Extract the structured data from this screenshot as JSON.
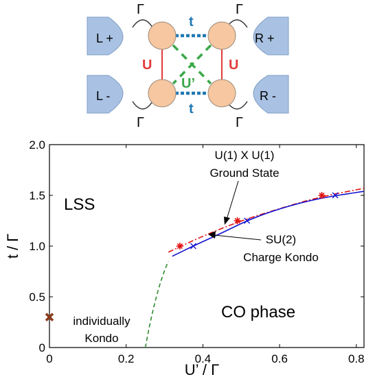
{
  "schematic": {
    "leads": {
      "left_top": "L +",
      "left_bottom": "L -",
      "right_top": "R +",
      "right_bottom": "R -"
    },
    "coupling_labels": {
      "gamma": "Γ",
      "t": "t",
      "u": "U",
      "u_prime": "U’"
    },
    "colors": {
      "lead": "#a9c2e3",
      "dot": "#f6c7a0",
      "t_bond": "#1f77b4",
      "u_bond": "#e23a3a",
      "u_prime_bond": "#3aa84a"
    }
  },
  "chart_data": {
    "type": "line",
    "xlabel": "U’ / Γ",
    "ylabel": "t / Γ",
    "xlim": [
      0,
      0.82
    ],
    "ylim": [
      0,
      2.0
    ],
    "xticks": [
      0,
      0.2,
      0.4,
      0.6,
      0.8
    ],
    "xtick_labels": [
      "0",
      "0.2",
      "0.4",
      "0.6",
      "0.8"
    ],
    "yticks": [
      0,
      0.5,
      1.0,
      1.5,
      2.0
    ],
    "ytick_labels": [
      "0",
      "0.5",
      "1.0",
      "1.5",
      "2.0"
    ],
    "series": [
      {
        "style": "dashed",
        "color": "#2e8b2e",
        "x": [
          0.25,
          0.26,
          0.27,
          0.28,
          0.29,
          0.3,
          0.31
        ],
        "y": [
          0.0,
          0.2,
          0.37,
          0.52,
          0.65,
          0.76,
          0.85
        ]
      },
      {
        "style": "dash-dot",
        "color": "#e01010",
        "x": [
          0.31,
          0.4,
          0.5,
          0.6,
          0.7,
          0.82
        ],
        "y": [
          0.94,
          1.1,
          1.25,
          1.37,
          1.48,
          1.57
        ]
      },
      {
        "style": "solid",
        "color": "#1010d0",
        "x": [
          0.32,
          0.38,
          0.45,
          0.52,
          0.6,
          0.7,
          0.82
        ],
        "y": [
          0.9,
          1.01,
          1.13,
          1.26,
          1.37,
          1.47,
          1.54
        ]
      },
      {
        "style": "markers",
        "marker": "asterisk",
        "color": "#e01010",
        "x": [
          0.34,
          0.49,
          0.71
        ],
        "y": [
          1.0,
          1.25,
          1.5
        ]
      },
      {
        "style": "markers",
        "marker": "x",
        "color": "#1010d0",
        "x": [
          0.375,
          0.515,
          0.745
        ],
        "y": [
          1.0,
          1.25,
          1.5
        ]
      },
      {
        "style": "markers",
        "marker": "X",
        "color": "#8b3a1a",
        "x": [
          0.0
        ],
        "y": [
          0.3
        ]
      }
    ],
    "annotations": {
      "lss": "LSS",
      "co_phase": "CO phase",
      "u1_line1": "U(1) X U(1)",
      "u1_line2": "Ground State",
      "su2_line1": "SU(2)",
      "su2_line2": "Charge Kondo",
      "individually_line1": "individually",
      "individually_line2": "Kondo"
    },
    "grid": false
  }
}
